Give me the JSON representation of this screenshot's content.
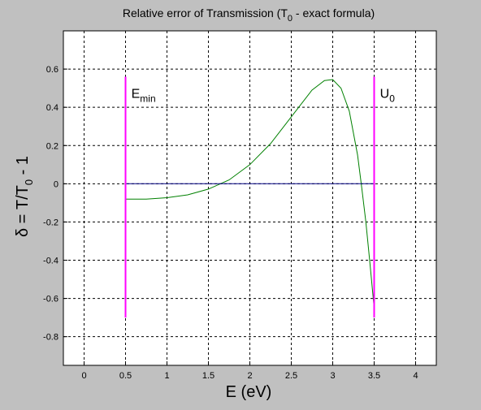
{
  "chart_data": {
    "type": "line",
    "title_parts": [
      "Relative error of Transmission (T",
      "0",
      " - exact formula)"
    ],
    "xlabel": "E (eV)",
    "ylabel_parts": [
      "δ = T/T",
      "0",
      " - 1"
    ],
    "xlim": [
      -0.25,
      4.25
    ],
    "ylim": [
      -0.95,
      0.8
    ],
    "xticks": [
      0,
      0.5,
      1,
      1.5,
      2,
      2.5,
      3,
      3.5,
      4
    ],
    "xtick_labels": [
      "0",
      "0.5",
      "1",
      "1.5",
      "2",
      "2.5",
      "3",
      "3.5",
      "4"
    ],
    "yticks": [
      -0.8,
      -0.6,
      -0.4,
      -0.2,
      0,
      0.2,
      0.4,
      0.6
    ],
    "ytick_labels": [
      "-0.8",
      "-0.6",
      "-0.4",
      "-0.2",
      "0",
      "0.2",
      "0.4",
      "0.6"
    ],
    "grid": true,
    "series": [
      {
        "color": "#008000",
        "x": [
          0.5,
          0.75,
          1.0,
          1.25,
          1.5,
          1.75,
          2.0,
          2.25,
          2.5,
          2.75,
          2.9,
          3.0,
          3.1,
          3.2,
          3.3,
          3.35,
          3.4,
          3.45,
          3.5
        ],
        "y": [
          -0.08,
          -0.08,
          -0.073,
          -0.058,
          -0.028,
          0.02,
          0.1,
          0.21,
          0.35,
          0.49,
          0.54,
          0.545,
          0.5,
          0.38,
          0.15,
          -0.02,
          -0.2,
          -0.42,
          -0.65
        ]
      },
      {
        "color": "#000080",
        "x": [
          0.5,
          3.5
        ],
        "y": [
          0,
          0
        ]
      }
    ],
    "vlines": [
      {
        "x": 0.5,
        "y0": -0.7,
        "y1": 0.56,
        "color": "#ff00ff"
      },
      {
        "x": 3.5,
        "y0": -0.7,
        "y1": 0.56,
        "color": "#ff00ff"
      }
    ],
    "annotations": [
      {
        "main": "E",
        "sub": "min",
        "x": 0.57,
        "y": 0.45
      },
      {
        "main": "U",
        "sub": "0",
        "x": 3.57,
        "y": 0.45
      }
    ]
  }
}
